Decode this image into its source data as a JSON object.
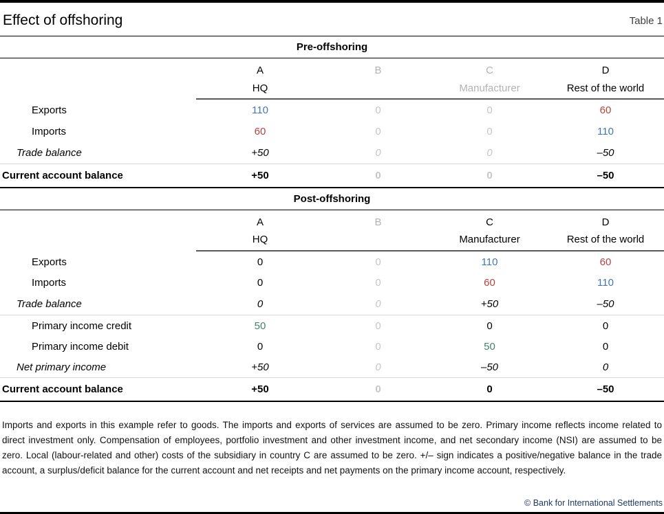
{
  "header": {
    "title": "Effect of offshoring",
    "table_label": "Table 1"
  },
  "colors": {
    "value_blue": "#4576b4",
    "value_red": "#b5423e",
    "value_green": "#3e8569",
    "inactive_gray": "#c6c6c6",
    "dimmed_header_gray": "#b3b3b3",
    "copyright_navy": "#1f3864"
  },
  "pre": {
    "title": "Pre-offshoring",
    "columns": [
      {
        "letter": "A",
        "name": "HQ"
      },
      {
        "letter": "B",
        "name": ""
      },
      {
        "letter": "C",
        "name": "Manufacturer"
      },
      {
        "letter": "D",
        "name": "Rest of the world"
      }
    ],
    "rows": [
      {
        "label": "Exports",
        "values": [
          "110",
          "0",
          "0",
          "60"
        ]
      },
      {
        "label": "Imports",
        "values": [
          "60",
          "0",
          "0",
          "110"
        ]
      },
      {
        "label": "Trade balance",
        "values": [
          "+50",
          "0",
          "0",
          "–50"
        ]
      }
    ],
    "total": {
      "label": "Current account balance",
      "values": [
        "+50",
        "0",
        "0",
        "–50"
      ]
    }
  },
  "post": {
    "title": "Post-offshoring",
    "columns": [
      {
        "letter": "A",
        "name": "HQ"
      },
      {
        "letter": "B",
        "name": ""
      },
      {
        "letter": "C",
        "name": "Manufacturer"
      },
      {
        "letter": "D",
        "name": "Rest of the world"
      }
    ],
    "trade_rows": [
      {
        "label": "Exports",
        "values": [
          "0",
          "0",
          "110",
          "60"
        ]
      },
      {
        "label": "Imports",
        "values": [
          "0",
          "0",
          "60",
          "110"
        ]
      },
      {
        "label": "Trade balance",
        "values": [
          "0",
          "0",
          "+50",
          "–50"
        ]
      }
    ],
    "income_rows": [
      {
        "label": "Primary income credit",
        "values": [
          "50",
          "0",
          "0",
          "0"
        ]
      },
      {
        "label": "Primary income debit",
        "values": [
          "0",
          "0",
          "50",
          "0"
        ]
      },
      {
        "label": "Net primary income",
        "values": [
          "+50",
          "0",
          "–50",
          "0"
        ]
      }
    ],
    "total": {
      "label": "Current account balance",
      "values": [
        "+50",
        "0",
        "0",
        "–50"
      ]
    }
  },
  "footnote": "Imports and exports in this example refer to goods. The imports and exports of services are assumed to be zero. Primary income reflects income related to direct investment only. Compensation of employees, portfolio investment and other investment income, and net secondary income (NSI) are assumed to be zero. Local (labour-related and other) costs of the subsidiary in country C are assumed to be zero. +/– sign indicates a positive/negative balance in the trade account, a surplus/deficit balance for the current account and net receipts and net payments on the primary income account, respectively.",
  "copyright": "© Bank for International Settlements"
}
